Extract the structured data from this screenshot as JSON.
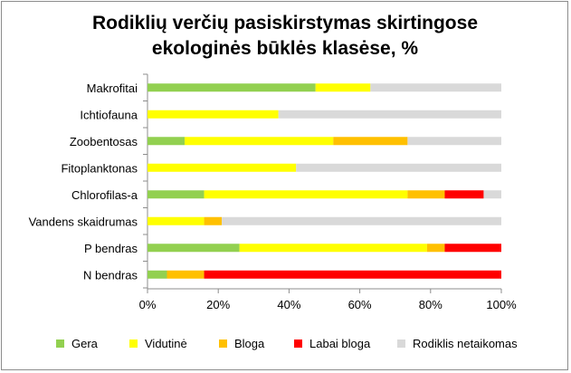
{
  "chart_data": {
    "type": "bar",
    "orientation": "horizontal",
    "stacked": true,
    "title_lines": [
      "Rodiklių verčių pasiskirstymas skirtingose",
      "ekologinės būklės klasėse, %"
    ],
    "categories": [
      "Makrofitai",
      "Ichtiofauna",
      "Zoobentosas",
      "Fitoplanktonas",
      "Chlorofilas-a",
      "Vandens skaidrumas",
      "P bendras",
      "N bendras"
    ],
    "series": [
      {
        "name": "Gera",
        "color": "#92d050",
        "values": [
          47.5,
          0,
          10.5,
          0,
          16,
          0,
          26,
          5.5
        ]
      },
      {
        "name": "Vidutinė",
        "color": "#ffff00",
        "values": [
          15.5,
          37,
          42,
          42,
          57.5,
          16,
          53,
          0
        ]
      },
      {
        "name": "Bloga",
        "color": "#ffc000",
        "values": [
          0,
          0,
          21,
          0,
          10.5,
          5,
          5,
          10.5
        ]
      },
      {
        "name": "Labai bloga",
        "color": "#ff0000",
        "values": [
          0,
          0,
          0,
          0,
          11,
          0,
          16,
          84
        ]
      },
      {
        "name": "Rodiklis netaikomas",
        "color": "#d9d9d9",
        "values": [
          37,
          63,
          26.5,
          58,
          5,
          79,
          0,
          0
        ]
      }
    ],
    "x_ticks": [
      "0%",
      "20%",
      "40%",
      "60%",
      "80%",
      "100%"
    ],
    "xlim": [
      0,
      100
    ],
    "grid": false,
    "legend_position": "bottom"
  }
}
